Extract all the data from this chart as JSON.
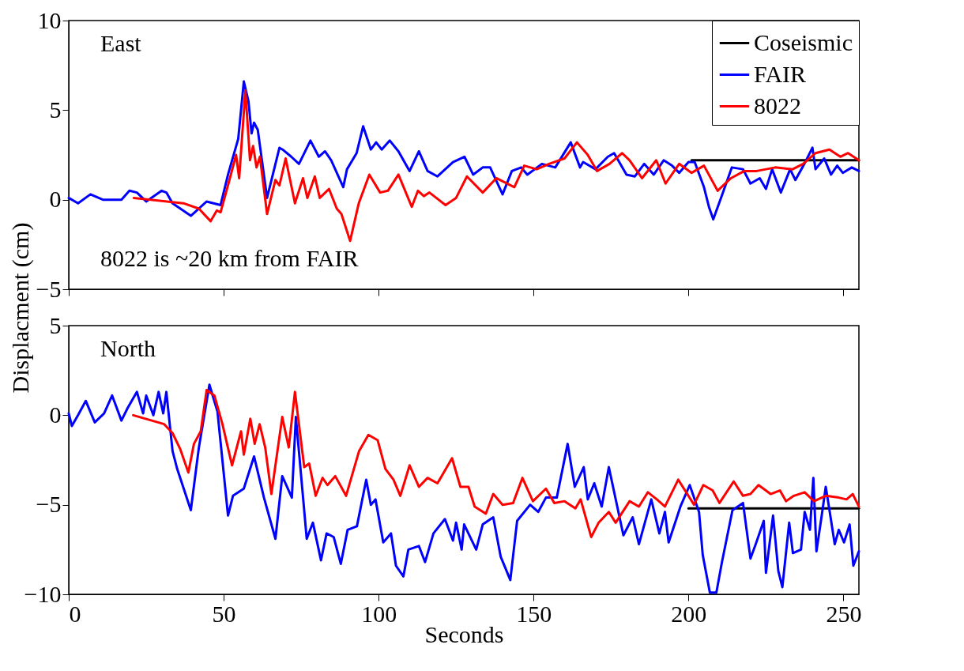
{
  "chart_data": [
    {
      "type": "line",
      "ylabel": "Displacment (cm)",
      "annotations": [
        "East",
        "8022 is ~20 km from FAIR"
      ],
      "xlim": [
        0,
        255
      ],
      "xticks": [
        0,
        50,
        100,
        150,
        200,
        250
      ],
      "ylim": [
        -5,
        10
      ],
      "yticks": [
        -5,
        0,
        5,
        10
      ],
      "tick_labels": "y",
      "grid": false,
      "legend": "top right",
      "series": [
        {
          "name": "Coseismic",
          "color": "#000000",
          "x": [
            201,
            255
          ],
          "values": [
            2.2,
            2.2
          ]
        },
        {
          "name": "FAIR",
          "color": "#0000ff",
          "x": [
            0,
            3,
            7,
            11,
            17,
            19.6,
            22,
            25,
            30,
            31.5,
            33.5,
            39.4,
            44.5,
            49,
            51.4,
            54.7,
            56.5,
            58,
            59,
            59.8,
            61,
            64,
            68,
            69,
            71.8,
            74.3,
            78,
            80.7,
            82.7,
            84.7,
            88.6,
            89.8,
            92.9,
            95,
            97.5,
            99.2,
            101,
            103.6,
            106.4,
            110,
            113,
            115.8,
            119,
            124,
            127.7,
            130.5,
            133.6,
            136,
            140,
            143,
            146,
            148,
            152.7,
            157,
            162,
            165,
            166,
            170,
            174,
            176,
            180,
            182.7,
            185.7,
            188.8,
            192,
            194.7,
            197,
            200,
            202,
            205,
            206.6,
            208,
            210.7,
            214,
            217.6,
            220,
            223,
            225,
            227,
            229.8,
            232.8,
            234.5,
            237.4,
            240,
            241,
            243.8,
            246,
            248,
            249.8,
            252.7,
            255
          ],
          "values": [
            0.1,
            -0.2,
            0.3,
            0,
            0,
            0.5,
            0.4,
            -0.1,
            0.5,
            0.4,
            -0.2,
            -0.9,
            -0.1,
            -0.3,
            1.4,
            3.4,
            6.6,
            5.5,
            3.7,
            4.3,
            3.9,
            0.1,
            2.9,
            2.8,
            2.4,
            2.0,
            3.3,
            2.4,
            2.7,
            2.2,
            0.7,
            1.7,
            2.6,
            4.1,
            2.8,
            3.2,
            2.8,
            3.3,
            2.7,
            1.6,
            2.7,
            1.6,
            1.3,
            2.1,
            2.4,
            1.4,
            1.8,
            1.8,
            0.3,
            1.6,
            1.8,
            1.4,
            2.0,
            1.8,
            3.2,
            1.8,
            2.1,
            1.7,
            2.4,
            2.6,
            1.4,
            1.3,
            2.0,
            1.4,
            2.2,
            1.9,
            1.5,
            2.1,
            2.1,
            0.7,
            -0.4,
            -1.1,
            0.2,
            1.8,
            1.7,
            0.9,
            1.2,
            0.6,
            1.7,
            0.4,
            1.7,
            1.1,
            2.0,
            2.9,
            1.7,
            2.3,
            1.4,
            1.9,
            1.5,
            1.8,
            1.6
          ]
        },
        {
          "name": "8022",
          "color": "#ff0000",
          "x": [
            21,
            37,
            42,
            45.8,
            47.8,
            49,
            51.7,
            54,
            55,
            57,
            58.5,
            59.5,
            60.6,
            61.7,
            64,
            66.7,
            68,
            70,
            73,
            75.6,
            77,
            79.4,
            81,
            84,
            86.5,
            88,
            90.8,
            93.6,
            97,
            100.5,
            103,
            106.4,
            110.7,
            112.7,
            114.6,
            116.4,
            121.6,
            125,
            128.5,
            133.6,
            138,
            143.8,
            147,
            151,
            155,
            160,
            164,
            167.5,
            170.5,
            174.5,
            178.6,
            181,
            185,
            189.6,
            192.6,
            197,
            201,
            205,
            209.4,
            213.7,
            218,
            222,
            228,
            233.6,
            237,
            241,
            245.5,
            249,
            251.5,
            255
          ],
          "values": [
            0.1,
            -0.2,
            -0.5,
            -1.2,
            -0.6,
            -0.7,
            1.0,
            2.5,
            1.2,
            6.1,
            2.2,
            3.0,
            1.8,
            2.4,
            -0.8,
            1.1,
            0.8,
            2.3,
            -0.2,
            1.2,
            0.1,
            1.3,
            0.1,
            0.6,
            -0.5,
            -0.8,
            -2.3,
            -0.2,
            1.4,
            0.4,
            0.5,
            1.4,
            -0.4,
            0.5,
            0.2,
            0.4,
            -0.3,
            0.1,
            1.3,
            0.4,
            1.2,
            0.7,
            1.9,
            1.7,
            2.0,
            2.3,
            3.2,
            2.5,
            1.6,
            2.0,
            2.6,
            2.2,
            1.2,
            2.2,
            0.9,
            2.0,
            1.5,
            1.9,
            0.5,
            1.2,
            1.6,
            1.6,
            1.8,
            1.7,
            2.0,
            2.6,
            2.8,
            2.4,
            2.6,
            2.2
          ]
        }
      ]
    },
    {
      "type": "line",
      "xlabel": "Seconds",
      "annotations": [
        "North"
      ],
      "xlim": [
        0,
        255
      ],
      "xticks": [
        0,
        50,
        100,
        150,
        200,
        250
      ],
      "ylim": [
        -10,
        5
      ],
      "yticks": [
        -10,
        -5,
        0,
        5
      ],
      "grid": false,
      "series": [
        {
          "color": "#000000",
          "x": [
            200,
            255
          ],
          "values": [
            -5.2,
            -5.2
          ]
        },
        {
          "color": "#0000ff",
          "x": [
            0,
            1,
            3,
            5.5,
            8.4,
            11.4,
            14,
            17,
            19,
            22,
            24,
            25,
            27.3,
            29,
            30.5,
            31.5,
            33.5,
            35,
            39.4,
            42,
            45.4,
            48,
            51.4,
            53,
            56.5,
            59.8,
            63,
            66.7,
            68.9,
            72,
            73.3,
            76.8,
            78.8,
            81.4,
            83.2,
            85.5,
            87.8,
            90,
            93,
            96,
            97.5,
            99,
            101.5,
            104,
            105.6,
            108,
            109.6,
            113,
            115,
            117.7,
            121.4,
            124,
            125,
            126.8,
            127.6,
            131.5,
            133.6,
            137,
            139.4,
            142.5,
            144.7,
            148.9,
            151.5,
            154,
            157.5,
            161,
            163.3,
            166.2,
            167.5,
            169.6,
            172,
            174.3,
            179,
            182,
            184,
            188,
            190.6,
            192.4,
            193.6,
            197.4,
            200.4,
            203.4,
            204.6,
            206.9,
            209,
            210.8,
            214.2,
            217.6,
            220,
            221.7,
            224.3,
            225,
            227.3,
            229,
            230.3,
            232.5,
            233.7,
            236.3,
            237.5,
            239.2,
            240.3,
            241.3,
            243,
            244.3,
            245.5,
            247.2,
            248.5,
            250.2,
            252,
            253.2,
            255
          ],
          "values": [
            0.1,
            -0.6,
            0,
            0.8,
            -0.4,
            0.1,
            1.1,
            -0.3,
            0.4,
            1.3,
            0.1,
            1.1,
            0,
            1.3,
            0.1,
            1.3,
            -2.0,
            -3.0,
            -5.3,
            -1.8,
            1.7,
            0.2,
            -5.6,
            -4.5,
            -4.1,
            -2.3,
            -4.6,
            -6.9,
            -3.4,
            -4.6,
            -0.1,
            -6.9,
            -6.0,
            -8.1,
            -6.6,
            -6.8,
            -8.3,
            -6.4,
            -6.2,
            -3.6,
            -5.0,
            -4.7,
            -7.1,
            -6.6,
            -8.4,
            -9.0,
            -7.5,
            -7.3,
            -8.2,
            -6.6,
            -5.8,
            -7.0,
            -6.0,
            -7.5,
            -6.1,
            -7.5,
            -6.1,
            -5.7,
            -7.9,
            -9.2,
            -5.9,
            -5.0,
            -5.4,
            -4.6,
            -4.6,
            -1.6,
            -4.0,
            -2.9,
            -4.7,
            -3.8,
            -5.1,
            -2.9,
            -6.7,
            -5.7,
            -7.2,
            -4.7,
            -6.6,
            -5.4,
            -7.1,
            -5.1,
            -3.9,
            -5.4,
            -7.8,
            -9.9,
            -9.9,
            -8.2,
            -5.3,
            -4.9,
            -8.0,
            -7.2,
            -5.9,
            -8.8,
            -5.6,
            -8.7,
            -9.6,
            -6.0,
            -7.7,
            -7.5,
            -5.4,
            -6.4,
            -3.5,
            -7.6,
            -5.6,
            -4.0,
            -5.3,
            -7.2,
            -6.4,
            -7.1,
            -6.1,
            -8.4,
            -7.6
          ]
        },
        {
          "color": "#ff0000",
          "x": [
            20.8,
            30.8,
            33.5,
            36,
            38.6,
            40.4,
            42.6,
            44.5,
            47,
            49.6,
            52.7,
            55.6,
            56.5,
            58.6,
            60,
            61.6,
            63.4,
            65.4,
            68.9,
            71,
            73,
            76,
            77.6,
            79.7,
            81.9,
            83.5,
            86,
            89.5,
            93.7,
            96.7,
            99.7,
            102.2,
            104.8,
            107,
            110,
            113,
            115.8,
            119,
            123.7,
            126.4,
            129,
            131,
            134.6,
            137,
            140,
            143.4,
            146.4,
            149.8,
            154,
            156.7,
            160,
            163.5,
            165.2,
            168.6,
            171,
            174.3,
            176.5,
            181,
            184,
            186.9,
            189.8,
            192.4,
            196.7,
            201.8,
            204.8,
            207.8,
            210,
            214.6,
            217.6,
            220,
            222.6,
            226.5,
            229.5,
            231.5,
            234,
            237.5,
            240.5,
            244.3,
            248.5,
            251,
            253,
            255
          ],
          "values": [
            0,
            -0.5,
            -1.0,
            -1.9,
            -3.2,
            -1.6,
            -0.9,
            1.4,
            1.1,
            -0.5,
            -2.8,
            -0.9,
            -2.2,
            -0.2,
            -1.6,
            -0.5,
            -1.8,
            -4.4,
            -0.1,
            -1.8,
            1.3,
            -2.9,
            -2.7,
            -4.5,
            -3.5,
            -3.9,
            -3.4,
            -4.5,
            -2.0,
            -1.1,
            -1.4,
            -3.0,
            -3.6,
            -4.5,
            -2.8,
            -4.0,
            -3.5,
            -3.8,
            -2.4,
            -4.0,
            -4.0,
            -5.1,
            -5.5,
            -4.4,
            -5.0,
            -4.9,
            -3.5,
            -4.8,
            -4.1,
            -4.9,
            -4.8,
            -5.2,
            -4.7,
            -6.8,
            -6.0,
            -5.4,
            -6.0,
            -4.8,
            -5.1,
            -4.3,
            -4.7,
            -5.1,
            -3.6,
            -5.0,
            -3.9,
            -4.2,
            -4.9,
            -3.7,
            -4.5,
            -4.4,
            -3.9,
            -4.4,
            -4.2,
            -4.8,
            -4.5,
            -4.3,
            -4.8,
            -4.5,
            -4.6,
            -4.7,
            -4.4,
            -5.1
          ]
        }
      ]
    }
  ]
}
